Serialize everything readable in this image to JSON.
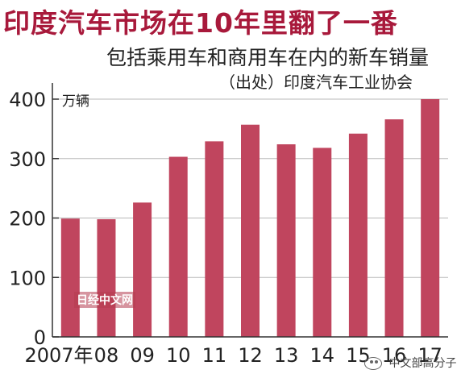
{
  "chart_data": {
    "type": "bar",
    "title": "印度汽车市场在10年里翻了一番",
    "subtitle": "包括乘用车和商用车在内的新车销量",
    "source": "（出处）印度汽车工业协会",
    "unit_label": "万辆",
    "categories": [
      "2007年",
      "08",
      "09",
      "10",
      "11",
      "12",
      "13",
      "14",
      "15",
      "16",
      "17"
    ],
    "values": [
      199,
      198,
      226,
      303,
      329,
      357,
      324,
      318,
      342,
      366,
      400
    ],
    "y_ticks": [
      "0",
      "100",
      "200",
      "300",
      "400"
    ],
    "ylim": [
      0,
      420
    ],
    "grid": false,
    "bar_color": "#c0455e",
    "grid_line_color": "#b8b8b8"
  },
  "watermark": "日经中文网",
  "footer": {
    "icon": "wechat-icon",
    "text": "中文部高分子"
  }
}
